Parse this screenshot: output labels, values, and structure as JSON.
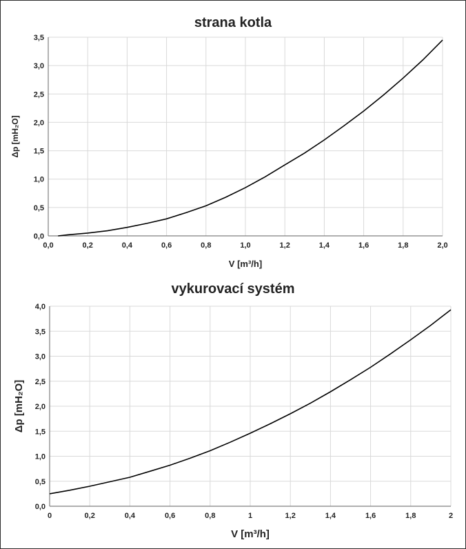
{
  "chart_data": [
    {
      "type": "line",
      "title": "strana kotla",
      "xlabel": "V [m³/h]",
      "ylabel": "Δp [mH₂O]",
      "xlim": [
        0,
        2
      ],
      "ylim": [
        0,
        3.5
      ],
      "x_ticks": [
        "0,0",
        "0,2",
        "0,4",
        "0,6",
        "0,8",
        "1,0",
        "1,2",
        "1,4",
        "1,6",
        "1,8",
        "2,0"
      ],
      "y_ticks": [
        "0,0",
        "0,5",
        "1,0",
        "1,5",
        "2,0",
        "2,5",
        "3,0",
        "3,5"
      ],
      "grid": true,
      "line_color": "#000000",
      "series": [
        {
          "x": [
            0.05,
            0.1,
            0.2,
            0.3,
            0.4,
            0.5,
            0.6,
            0.7,
            0.8,
            0.9,
            1.0,
            1.1,
            1.2,
            1.3,
            1.4,
            1.5,
            1.6,
            1.7,
            1.8,
            1.9,
            2.0
          ],
          "y": [
            0.0,
            0.02,
            0.05,
            0.09,
            0.15,
            0.22,
            0.3,
            0.41,
            0.53,
            0.68,
            0.85,
            1.04,
            1.25,
            1.46,
            1.69,
            1.94,
            2.2,
            2.48,
            2.78,
            3.1,
            3.45
          ]
        }
      ]
    },
    {
      "type": "line",
      "title": "vykurovací systém",
      "xlabel": "V [m³/h]",
      "ylabel": "Δp [mH₂O]",
      "xlim": [
        0,
        2
      ],
      "ylim": [
        0,
        4
      ],
      "x_ticks": [
        "0",
        "0,2",
        "0,4",
        "0,6",
        "0,8",
        "1",
        "1,2",
        "1,4",
        "1,6",
        "1,8",
        "2"
      ],
      "y_ticks": [
        "0,0",
        "0,5",
        "1,0",
        "1,5",
        "2,0",
        "2,5",
        "3,0",
        "3,5",
        "4,0"
      ],
      "grid": true,
      "line_color": "#000000",
      "series": [
        {
          "x": [
            0,
            0.1,
            0.2,
            0.3,
            0.4,
            0.5,
            0.6,
            0.7,
            0.8,
            0.9,
            1.0,
            1.1,
            1.2,
            1.3,
            1.4,
            1.5,
            1.6,
            1.7,
            1.8,
            1.9,
            2.0
          ],
          "y": [
            0.25,
            0.32,
            0.4,
            0.49,
            0.58,
            0.7,
            0.82,
            0.96,
            1.11,
            1.28,
            1.46,
            1.65,
            1.85,
            2.06,
            2.29,
            2.53,
            2.78,
            3.05,
            3.33,
            3.62,
            3.93
          ]
        }
      ]
    }
  ]
}
